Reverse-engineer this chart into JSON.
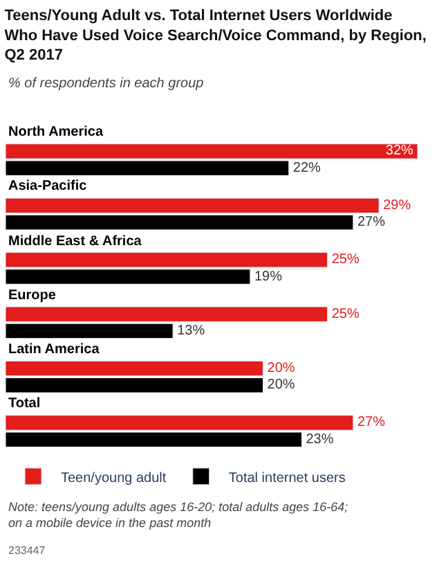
{
  "chart_data": {
    "type": "bar",
    "orientation": "horizontal",
    "title": "Teens/Young Adult vs. Total Internet Users Worldwide Who Have Used Voice Search/Voice Command, by Region, Q2 2017",
    "subtitle": "% of respondents in each group",
    "categories": [
      "North America",
      "Asia-Pacific",
      "Middle East & Africa",
      "Europe",
      "Latin America",
      "Total"
    ],
    "series": [
      {
        "name": "Teen/young adult",
        "color": "#e31c1c",
        "values": [
          32,
          29,
          25,
          25,
          20,
          27
        ],
        "value_labels": [
          "32%",
          "29%",
          "25%",
          "25%",
          "20%",
          "27%"
        ]
      },
      {
        "name": "Total internet users",
        "color": "#000000",
        "values": [
          22,
          27,
          19,
          13,
          20,
          23
        ],
        "value_labels": [
          "22%",
          "27%",
          "19%",
          "13%",
          "20%",
          "23%"
        ]
      }
    ],
    "tick_labels": "y",
    "legend": "bottom",
    "annotations": [
      "Note: teens/young adults ages 16-20; total adults ages 16-64; on a mobile device in the past month",
      "233447"
    ]
  }
}
